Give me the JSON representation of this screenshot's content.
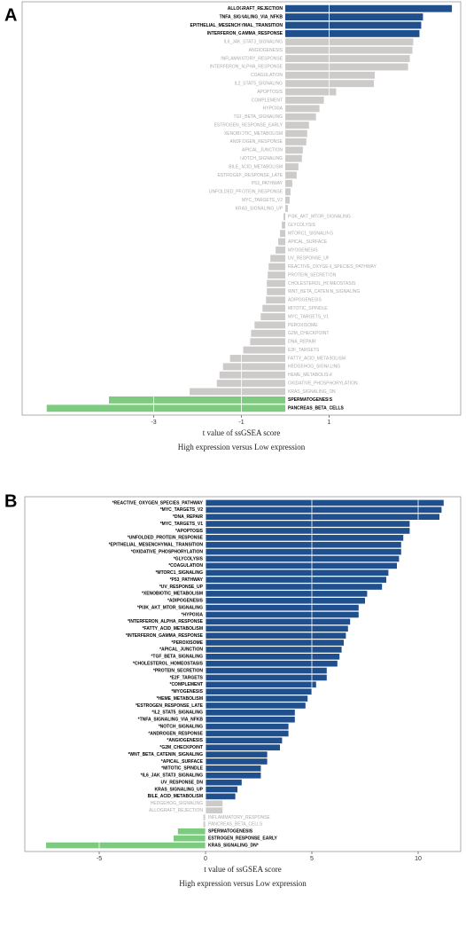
{
  "chart_data": [
    {
      "type": "bar",
      "panel_label": "A",
      "xlabel": "t value of ssGSEA score",
      "subtitle": "High expression versus Low expression",
      "categories": [
        "ALLOGRAFT_REJECTION",
        "TNFA_SIGNALING_VIA_NFKB",
        "EPITHELIAL_MESENCHYMAL_TRANSITION",
        "INTERFERON_GAMMA_RESPONSE",
        "IL6_JAK_STAT3_SIGNALING",
        "ANGIOGENESIS",
        "INFLAMMATORY_RESPONSE",
        "INTERFERON_ALPHA_RESPONSE",
        "COAGULATION",
        "IL2_STAT5_SIGNALING",
        "APOPTOSIS",
        "COMPLEMENT",
        "HYPOXIA",
        "TGF_BETA_SIGNALING",
        "ESTROGEN_RESPONSE_EARLY",
        "XENOBIOTIC_METABOLISM",
        "ANDROGEN_RESPONSE",
        "APICAL_JUNCTION",
        "NOTCH_SIGNALING",
        "BILE_ACID_METABOLISM",
        "ESTROGEN_RESPONSE_LATE",
        "P53_PATHWAY",
        "UNFOLDED_PROTEIN_RESPONSE",
        "MYC_TARGETS_V2",
        "KRAS_SIGNALING_UP",
        "PI3K_AKT_MTOR_SIGNALING",
        "GLYCOLYSIS",
        "MTORC1_SIGNALING",
        "APICAL_SURFACE",
        "MYOGENESIS",
        "UV_RESPONSE_UP",
        "REACTIVE_OXYGEN_SPECIES_PATHWAY",
        "PROTEIN_SECRETION",
        "CHOLESTEROL_HOMEOSTASIS",
        "WNT_BETA_CATENIN_SIGNALING",
        "ADIPOGENESIS",
        "MITOTIC_SPINDLE",
        "MYC_TARGETS_V1",
        "PEROXISOME",
        "G2M_CHECKPOINT",
        "DNA_REPAIR",
        "E2F_TARGETS",
        "FATTY_ACID_METABOLISM",
        "HEDGEHOG_SIGNALING",
        "HEME_METABOLISM",
        "OXIDATIVE_PHOSPHORYLATION",
        "KRAS_SIGNALING_DN",
        "SPERMATOGENESIS",
        "PANCREAS_BETA_CELLS"
      ],
      "values": [
        3.8,
        3.14,
        3.1,
        3.06,
        2.92,
        2.9,
        2.84,
        2.8,
        2.04,
        2.02,
        1.16,
        0.88,
        0.78,
        0.7,
        0.54,
        0.5,
        0.48,
        0.4,
        0.38,
        0.3,
        0.26,
        0.16,
        0.12,
        0.1,
        0.06,
        -0.04,
        -0.08,
        -0.12,
        -0.16,
        -0.22,
        -0.34,
        -0.38,
        -0.4,
        -0.42,
        -0.42,
        -0.44,
        -0.52,
        -0.56,
        -0.7,
        -0.78,
        -0.8,
        -0.96,
        -1.26,
        -1.42,
        -1.5,
        -1.56,
        -2.18,
        -4.02,
        -5.44
      ],
      "colors": [
        "#1f4f8d",
        "#1f4f8d",
        "#1f4f8d",
        "#1f4f8d",
        "#cdcaca",
        "#cdcaca",
        "#cdcaca",
        "#cdcaca",
        "#cdcaca",
        "#cdcaca",
        "#cdcaca",
        "#cdcaca",
        "#cdcaca",
        "#cdcaca",
        "#cdcaca",
        "#cdcaca",
        "#cdcaca",
        "#cdcaca",
        "#cdcaca",
        "#cdcaca",
        "#cdcaca",
        "#cdcaca",
        "#cdcaca",
        "#cdcaca",
        "#cdcaca",
        "#cdcaca",
        "#cdcaca",
        "#cdcaca",
        "#cdcaca",
        "#cdcaca",
        "#cdcaca",
        "#cdcaca",
        "#cdcaca",
        "#cdcaca",
        "#cdcaca",
        "#cdcaca",
        "#cdcaca",
        "#cdcaca",
        "#cdcaca",
        "#cdcaca",
        "#cdcaca",
        "#cdcaca",
        "#cdcaca",
        "#cdcaca",
        "#cdcaca",
        "#cdcaca",
        "#cdcaca",
        "#7ccb7f",
        "#7ccb7f"
      ],
      "xlim": [
        -6,
        4
      ],
      "xticks": [
        -3,
        -1,
        1
      ],
      "grid": true
    },
    {
      "type": "bar",
      "panel_label": "B",
      "xlabel": "t value of ssGSEA score",
      "subtitle": "High expression versus Low expression",
      "categories": [
        "*REACTIVE_OXYGEN_SPECIES_PATHWAY",
        "*MYC_TARGETS_V2",
        "*DNA_REPAIR",
        "*MYC_TARGETS_V1",
        "*APOPTOSIS",
        "*UNFOLDED_PROTEIN_RESPONSE",
        "*EPITHELIAL_MESENCHYMAL_TRANSITION",
        "*OXIDATIVE_PHOSPHORYLATION",
        "*GLYCOLYSIS",
        "*COAGULATION",
        "*MTORC1_SIGNALING",
        "*P53_PATHWAY",
        "*UV_RESPONSE_UP",
        "*XENOBIOTIC_METABOLISM",
        "*ADIPOGENESIS",
        "*PI3K_AKT_MTOR_SIGNALING",
        "*HYPOXIA",
        "*INTERFERON_ALPHA_RESPONSE",
        "*FATTY_ACID_METABOLISM",
        "*INTERFERON_GAMMA_RESPONSE",
        "*PEROXISOME",
        "*APICAL_JUNCTION",
        "*TGF_BETA_SIGNALING",
        "*CHOLESTEROL_HOMEOSTASIS",
        "*PROTEIN_SECRETION",
        "*E2F_TARGETS",
        "*COMPLEMENT",
        "*MYOGENESIS",
        "*HEME_METABOLISM",
        "*ESTROGEN_RESPONSE_LATE",
        "*IL2_STAT5_SIGNALING",
        "*TNFA_SIGNALING_VIA_NFKB",
        "*NOTCH_SIGNALING",
        "*ANDROGEN_RESPONSE",
        "*ANGIOGENESIS",
        "*G2M_CHECKPOINT",
        "*WNT_BETA_CATENIN_SIGNALING",
        "*APICAL_SURFACE",
        "*MITOTIC_SPINDLE",
        "*IL6_JAK_STAT3_SIGNALING",
        "UV_RESPONSE_DN",
        "KRAS_SIGNALING_UP",
        "BILE_ACID_METABOLISM",
        "HEDGEHOG_SIGNALING",
        "ALLOGRAFT_REJECTION",
        "INFLAMMATORY_RESPONSE",
        "PANCREAS_BETA_CELLS",
        "SPERMATOGENESIS",
        "ESTROGEN_RESPONSE_EARLY",
        "KRAS_SIGNALING_DN*"
      ],
      "values": [
        11.2,
        11.1,
        11.0,
        9.6,
        9.6,
        9.3,
        9.2,
        9.2,
        9.1,
        9.0,
        8.6,
        8.5,
        8.3,
        7.6,
        7.5,
        7.2,
        7.2,
        6.8,
        6.7,
        6.6,
        6.5,
        6.4,
        6.3,
        6.2,
        5.7,
        5.7,
        5.2,
        5.0,
        4.8,
        4.7,
        4.2,
        4.2,
        3.9,
        3.9,
        3.6,
        3.5,
        2.9,
        2.9,
        2.6,
        2.6,
        1.7,
        1.5,
        1.4,
        0.8,
        0.8,
        -0.1,
        -0.1,
        -1.3,
        -1.5,
        -7.5
      ],
      "colors": [
        "#1f4f8d",
        "#1f4f8d",
        "#1f4f8d",
        "#1f4f8d",
        "#1f4f8d",
        "#1f4f8d",
        "#1f4f8d",
        "#1f4f8d",
        "#1f4f8d",
        "#1f4f8d",
        "#1f4f8d",
        "#1f4f8d",
        "#1f4f8d",
        "#1f4f8d",
        "#1f4f8d",
        "#1f4f8d",
        "#1f4f8d",
        "#1f4f8d",
        "#1f4f8d",
        "#1f4f8d",
        "#1f4f8d",
        "#1f4f8d",
        "#1f4f8d",
        "#1f4f8d",
        "#1f4f8d",
        "#1f4f8d",
        "#1f4f8d",
        "#1f4f8d",
        "#1f4f8d",
        "#1f4f8d",
        "#1f4f8d",
        "#1f4f8d",
        "#1f4f8d",
        "#1f4f8d",
        "#1f4f8d",
        "#1f4f8d",
        "#1f4f8d",
        "#1f4f8d",
        "#1f4f8d",
        "#1f4f8d",
        "#1f4f8d",
        "#1f4f8d",
        "#1f4f8d",
        "#cdcaca",
        "#cdcaca",
        "#cdcaca",
        "#cdcaca",
        "#7ccb7f",
        "#7ccb7f",
        "#7ccb7f"
      ],
      "xlim": [
        -8.5,
        12
      ],
      "xticks": [
        -5,
        0,
        5,
        10
      ],
      "grid": true
    }
  ]
}
